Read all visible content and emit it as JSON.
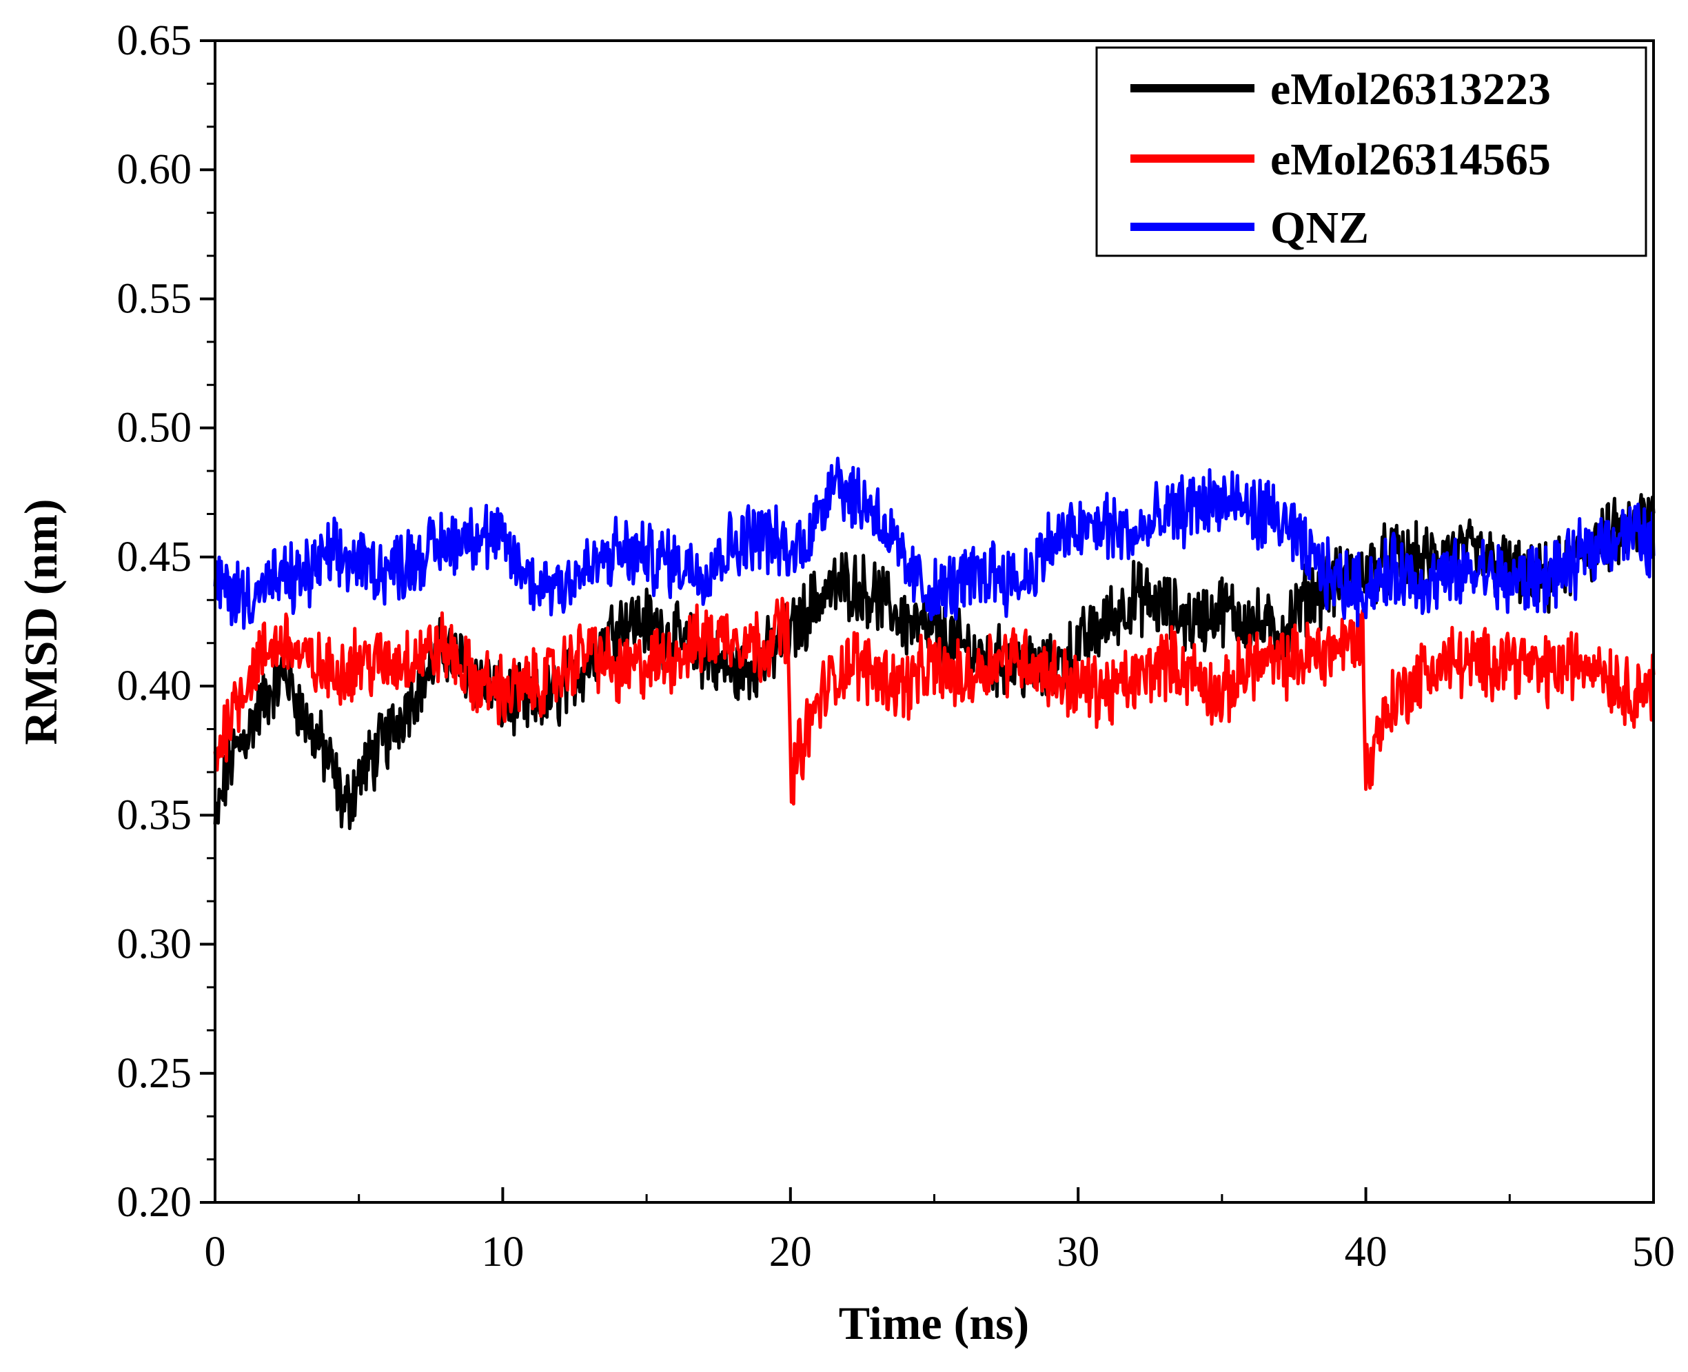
{
  "chart_data": {
    "type": "line",
    "title": "",
    "xlabel": "Time (ns)",
    "ylabel": "RMSD (nm)",
    "xlim": [
      0,
      50
    ],
    "ylim": [
      0.2,
      0.65
    ],
    "x_ticks": [
      0,
      10,
      20,
      30,
      40,
      50
    ],
    "x_tick_labels": [
      "0",
      "10",
      "20",
      "30",
      "40",
      "50"
    ],
    "y_ticks": [
      0.2,
      0.25,
      0.3,
      0.35,
      0.4,
      0.45,
      0.5,
      0.55,
      0.6,
      0.65
    ],
    "y_tick_labels": [
      "0.20",
      "0.25",
      "0.30",
      "0.35",
      "0.40",
      "0.45",
      "0.50",
      "0.55",
      "0.60",
      "0.65"
    ],
    "grid": false,
    "legend_position": "top-right",
    "series": [
      {
        "name": "eMol26313223",
        "color": "#000000",
        "x": [
          0,
          0.5,
          1,
          1.5,
          2,
          2.5,
          3,
          3.5,
          4,
          4.5,
          5,
          6,
          7,
          8,
          9,
          10,
          11,
          12,
          13,
          14,
          15,
          16,
          17,
          18,
          19,
          20,
          21,
          22,
          23,
          24,
          25,
          26,
          27,
          28,
          29,
          30,
          31,
          32,
          33,
          34,
          35,
          36,
          37,
          38,
          39,
          40,
          41,
          42,
          43,
          44,
          45,
          46,
          47,
          48,
          49,
          50
        ],
        "values": [
          0.345,
          0.37,
          0.38,
          0.39,
          0.4,
          0.405,
          0.39,
          0.38,
          0.37,
          0.352,
          0.365,
          0.38,
          0.4,
          0.415,
          0.405,
          0.395,
          0.392,
          0.398,
          0.41,
          0.425,
          0.425,
          0.418,
          0.412,
          0.405,
          0.41,
          0.42,
          0.435,
          0.44,
          0.435,
          0.425,
          0.42,
          0.415,
          0.41,
          0.408,
          0.405,
          0.415,
          0.425,
          0.435,
          0.43,
          0.425,
          0.43,
          0.425,
          0.42,
          0.435,
          0.44,
          0.445,
          0.45,
          0.448,
          0.452,
          0.45,
          0.445,
          0.44,
          0.445,
          0.455,
          0.46,
          0.465
        ]
      },
      {
        "name": "eMol26314565",
        "color": "#ff0000",
        "x": [
          0,
          0.5,
          1,
          1.5,
          2,
          2.5,
          3,
          4,
          5,
          6,
          7,
          8,
          9,
          10,
          11,
          12,
          13,
          14,
          15,
          16,
          17,
          18,
          19,
          19.9,
          20,
          20.5,
          21,
          22,
          23,
          24,
          25,
          26,
          27,
          28,
          29,
          30,
          31,
          32,
          33,
          34,
          35,
          36,
          37,
          38,
          39,
          39.9,
          40,
          40.5,
          41,
          42,
          43,
          44,
          45,
          46,
          47,
          48,
          49,
          50
        ],
        "values": [
          0.37,
          0.39,
          0.4,
          0.41,
          0.415,
          0.418,
          0.41,
          0.405,
          0.41,
          0.408,
          0.412,
          0.415,
          0.402,
          0.398,
          0.4,
          0.405,
          0.415,
          0.405,
          0.408,
          0.412,
          0.418,
          0.42,
          0.415,
          0.425,
          0.365,
          0.38,
          0.395,
          0.41,
          0.405,
          0.4,
          0.408,
          0.402,
          0.41,
          0.412,
          0.405,
          0.4,
          0.398,
          0.402,
          0.41,
          0.405,
          0.395,
          0.41,
          0.408,
          0.412,
          0.415,
          0.42,
          0.365,
          0.385,
          0.395,
          0.405,
          0.41,
          0.408,
          0.412,
          0.405,
          0.408,
          0.41,
          0.398,
          0.4
        ]
      },
      {
        "name": "QNZ",
        "color": "#0000ff",
        "x": [
          0,
          1,
          2,
          3,
          4,
          5,
          6,
          7,
          8,
          9,
          10,
          11,
          12,
          13,
          14,
          15,
          16,
          17,
          18,
          19,
          20,
          21,
          21.5,
          22,
          23,
          24,
          25,
          26,
          27,
          28,
          29,
          30,
          31,
          32,
          33,
          34,
          35,
          36,
          37,
          38,
          39,
          40,
          41,
          42,
          43,
          44,
          45,
          46,
          47,
          48,
          49,
          50
        ],
        "values": [
          0.44,
          0.435,
          0.44,
          0.442,
          0.45,
          0.448,
          0.445,
          0.45,
          0.455,
          0.46,
          0.455,
          0.44,
          0.44,
          0.445,
          0.452,
          0.45,
          0.448,
          0.445,
          0.455,
          0.46,
          0.45,
          0.465,
          0.485,
          0.475,
          0.468,
          0.445,
          0.435,
          0.44,
          0.445,
          0.44,
          0.455,
          0.46,
          0.462,
          0.458,
          0.465,
          0.47,
          0.472,
          0.468,
          0.465,
          0.45,
          0.44,
          0.438,
          0.445,
          0.44,
          0.442,
          0.445,
          0.44,
          0.442,
          0.445,
          0.455,
          0.46,
          0.455
        ]
      }
    ]
  }
}
